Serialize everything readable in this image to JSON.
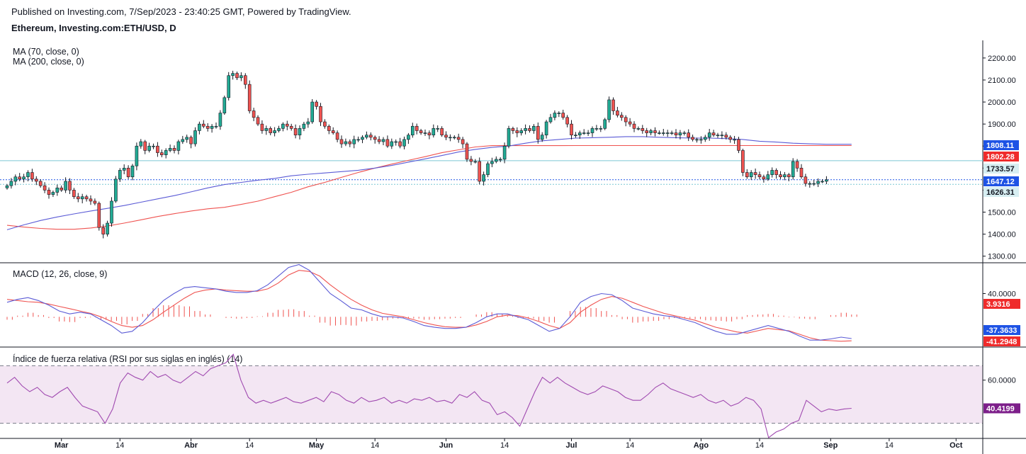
{
  "header": {
    "published": "Published on Investing.com, 7/Sep/2023 - 23:40:25 GMT, Powered by TradingView.",
    "symbol": "Ethereum, Investing.com:ETH/USD, D"
  },
  "colors": {
    "up": "#26a69a",
    "upBody": "#22ab94",
    "down": "#ef5350",
    "ma70": "#5b5bd6",
    "ma200": "#ef5350",
    "macd": "#5b5bd6",
    "signal": "#ef5350",
    "hist": "#ef5350",
    "rsi": "#a04ab0",
    "rsiBand": "#f3e6f3",
    "hline": "#7cc7d4",
    "tagBlue": "#1e53e5",
    "tagRed": "#ef2b2b",
    "tagCyan": "#d7eef2",
    "tagPurple": "#7d1f8a"
  },
  "chart_data": [
    {
      "type": "candlestick",
      "title": "Ethereum, Investing.com:ETH/USD, D",
      "indicators": [
        "MA (70, close, 0)",
        "MA (200, close, 0)"
      ],
      "y_ticks": [
        "2200.00",
        "2100.00",
        "2000.00",
        "1900.00",
        "1800.00",
        "1700.00",
        "1600.00",
        "1500.00",
        "1400.00",
        "1300.00"
      ],
      "y_tick_values": [
        2200,
        2100,
        2000,
        1900,
        1800,
        1700,
        1600,
        1500,
        1400,
        1300
      ],
      "ylim": [
        1270,
        2280
      ],
      "x_labels": [
        "Mar",
        "14",
        "Abr",
        "14",
        "May",
        "14",
        "Jun",
        "14",
        "Jul",
        "14",
        "Ago",
        "14",
        "Sep",
        "14",
        "Oct"
      ],
      "x_label_days": [
        13,
        27,
        44,
        58,
        74,
        88,
        105,
        119,
        135,
        149,
        166,
        180,
        197,
        211,
        227
      ],
      "last_day": 202,
      "price_tags": [
        {
          "label": "1808.11",
          "value": 1808.11,
          "style": "tagBlue"
        },
        {
          "label": "1802.28",
          "value": 1802.28,
          "style": "tagRed"
        },
        {
          "label": "1733.57",
          "value": 1733.57,
          "style": "tagCyan"
        },
        {
          "label": "1647.12",
          "value": 1647.12,
          "style": "tagBlue"
        },
        {
          "label": "1626.31",
          "value": 1626.31,
          "style": "tagCyan"
        }
      ],
      "hlines": [
        1733.57,
        1647.12,
        1626.31
      ],
      "close": [
        1620,
        1640,
        1660,
        1650,
        1660,
        1680,
        1650,
        1640,
        1620,
        1600,
        1580,
        1590,
        1610,
        1600,
        1640,
        1600,
        1570,
        1560,
        1570,
        1560,
        1550,
        1540,
        1430,
        1400,
        1450,
        1550,
        1650,
        1690,
        1700,
        1660,
        1710,
        1800,
        1820,
        1780,
        1800,
        1800,
        1770,
        1760,
        1780,
        1790,
        1780,
        1820,
        1830,
        1840,
        1810,
        1870,
        1900,
        1890,
        1880,
        1890,
        1890,
        1950,
        2020,
        2120,
        2130,
        2110,
        2120,
        2080,
        1960,
        1930,
        1900,
        1870,
        1880,
        1860,
        1870,
        1880,
        1900,
        1890,
        1880,
        1850,
        1880,
        1900,
        1910,
        2000,
        1980,
        1910,
        1890,
        1870,
        1860,
        1830,
        1810,
        1820,
        1810,
        1830,
        1830,
        1840,
        1850,
        1840,
        1830,
        1820,
        1830,
        1800,
        1820,
        1820,
        1800,
        1830,
        1850,
        1890,
        1870,
        1860,
        1860,
        1850,
        1880,
        1880,
        1850,
        1840,
        1840,
        1840,
        1830,
        1810,
        1740,
        1730,
        1730,
        1640,
        1670,
        1720,
        1730,
        1740,
        1740,
        1800,
        1880,
        1870,
        1860,
        1870,
        1880,
        1870,
        1890,
        1830,
        1850,
        1910,
        1930,
        1950,
        1950,
        1930,
        1900,
        1850,
        1850,
        1860,
        1860,
        1860,
        1880,
        1880,
        1880,
        1920,
        2010,
        1960,
        1940,
        1930,
        1910,
        1900,
        1880,
        1880,
        1870,
        1860,
        1870,
        1860,
        1860,
        1860,
        1860,
        1860,
        1850,
        1860,
        1860,
        1840,
        1830,
        1830,
        1830,
        1840,
        1860,
        1850,
        1850,
        1850,
        1840,
        1830,
        1830,
        1780,
        1680,
        1660,
        1680,
        1670,
        1660,
        1650,
        1670,
        1690,
        1670,
        1660,
        1670,
        1660,
        1730,
        1700,
        1660,
        1630,
        1630,
        1630,
        1640,
        1640,
        1647.12
      ],
      "ma70": [
        1420,
        1442,
        1462,
        1478,
        1492,
        1505,
        1517,
        1530,
        1545,
        1560,
        1575,
        1592,
        1610,
        1625,
        1635,
        1645,
        1653,
        1665,
        1672,
        1678,
        1684,
        1690,
        1700,
        1712,
        1727,
        1742,
        1757,
        1773,
        1785,
        1794,
        1800,
        1813,
        1824,
        1830,
        1836,
        1838,
        1840,
        1843,
        1843,
        1840,
        1838,
        1836,
        1836,
        1834,
        1830,
        1822,
        1818,
        1813,
        1810,
        1808
      ],
      "ma200": [
        1440,
        1432,
        1426,
        1422,
        1422,
        1428,
        1437,
        1450,
        1465,
        1480,
        1493,
        1505,
        1515,
        1522,
        1535,
        1550,
        1570,
        1590,
        1615,
        1635,
        1658,
        1680,
        1700,
        1718,
        1735,
        1752,
        1770,
        1783,
        1796,
        1802,
        1802,
        1802,
        1802,
        1802,
        1802.28
      ],
      "ma_start_day": 0,
      "ma_step": 4
    },
    {
      "type": "line",
      "title": "MACD (12, 26, close, 9)",
      "y_ticks": [
        "40.0000"
      ],
      "y_tick_values": [
        40
      ],
      "ylim": [
        -52,
        93
      ],
      "value_tags": [
        {
          "label": "3.9316",
          "value": 3.9316,
          "style": "tagRed"
        },
        {
          "label": "-37.3633",
          "value": -37.3633,
          "style": "tagBlue"
        },
        {
          "label": "-41.2948",
          "value": -41.2948,
          "style": "tagRed"
        }
      ],
      "series": [
        {
          "name": "MACD",
          "values": [
            25,
            30,
            33,
            28,
            20,
            10,
            5,
            8,
            5,
            -5,
            -15,
            -28,
            -25,
            -10,
            10,
            28,
            40,
            50,
            52,
            50,
            48,
            44,
            42,
            42,
            45,
            55,
            70,
            85,
            90,
            80,
            60,
            40,
            28,
            15,
            12,
            5,
            0,
            0,
            -2,
            -8,
            -15,
            -18,
            -20,
            -20,
            -18,
            -10,
            0,
            5,
            5,
            0,
            -5,
            -15,
            -25,
            -20,
            0,
            25,
            35,
            40,
            38,
            28,
            15,
            10,
            5,
            2,
            0,
            -5,
            -10,
            -18,
            -25,
            -30,
            -30,
            -25,
            -20,
            -15,
            -20,
            -25,
            -33,
            -40,
            -40,
            -38,
            -35,
            -37.3633
          ]
        },
        {
          "name": "Signal",
          "values": [
            30,
            28,
            26,
            25,
            22,
            18,
            14,
            10,
            6,
            0,
            -8,
            -15,
            -18,
            -15,
            -5,
            8,
            20,
            32,
            42,
            46,
            48,
            46,
            45,
            44,
            44,
            48,
            58,
            72,
            80,
            78,
            70,
            55,
            42,
            30,
            20,
            12,
            6,
            3,
            0,
            -5,
            -10,
            -14,
            -17,
            -18,
            -18,
            -14,
            -8,
            0,
            3,
            2,
            -2,
            -8,
            -15,
            -20,
            -10,
            8,
            20,
            30,
            35,
            32,
            25,
            18,
            12,
            6,
            2,
            -2,
            -6,
            -12,
            -18,
            -22,
            -26,
            -28,
            -24,
            -20,
            -22,
            -24,
            -30,
            -36,
            -40,
            -41,
            -42,
            -41.2948
          ]
        },
        {
          "name": "Histogram",
          "values": [
            -5,
            2,
            7,
            3,
            -2,
            -8,
            -9,
            -2,
            -1,
            -5,
            -7,
            -13,
            -7,
            5,
            15,
            20,
            20,
            18,
            10,
            4,
            0,
            -2,
            -3,
            -2,
            1,
            7,
            12,
            13,
            10,
            2,
            -10,
            -15,
            -14,
            -15,
            -8,
            -7,
            -6,
            -3,
            -2,
            -3,
            -5,
            -4,
            -3,
            -2,
            0,
            4,
            8,
            5,
            2,
            -2,
            -3,
            -7,
            -10,
            0,
            10,
            17,
            15,
            10,
            3,
            -4,
            -10,
            -8,
            -7,
            -4,
            -2,
            -3,
            -4,
            -6,
            -7,
            -8,
            -4,
            3,
            4,
            5,
            2,
            -1,
            -3,
            -4,
            0,
            3,
            7,
            3.9316
          ]
        }
      ]
    },
    {
      "type": "line",
      "title": "Índice de fuerza relativa (RSI por sus siglas en inglés) (14)",
      "y_ticks": [
        "60.0000"
      ],
      "y_tick_values": [
        60
      ],
      "ylim": [
        20,
        83
      ],
      "band": [
        30,
        70
      ],
      "value_tags": [
        {
          "label": "40.4199",
          "value": 40.4199,
          "style": "tagPurple"
        }
      ],
      "series": [
        {
          "name": "RSI",
          "values": [
            58,
            62,
            56,
            52,
            55,
            50,
            48,
            52,
            55,
            48,
            42,
            40,
            38,
            30,
            40,
            58,
            65,
            62,
            60,
            66,
            62,
            64,
            60,
            58,
            62,
            66,
            63,
            68,
            70,
            72,
            78,
            60,
            48,
            44,
            46,
            44,
            46,
            48,
            45,
            44,
            46,
            48,
            45,
            52,
            50,
            46,
            44,
            48,
            45,
            46,
            48,
            44,
            46,
            44,
            47,
            46,
            48,
            45,
            46,
            44,
            50,
            48,
            52,
            46,
            44,
            36,
            38,
            34,
            28,
            40,
            52,
            62,
            58,
            62,
            58,
            55,
            52,
            50,
            52,
            56,
            54,
            52,
            48,
            46,
            46,
            50,
            55,
            58,
            54,
            52,
            50,
            48,
            50,
            46,
            44,
            46,
            42,
            44,
            48,
            46,
            40,
            20,
            24,
            26,
            30,
            32,
            46,
            42,
            38,
            40,
            39,
            40,
            40.4199
          ]
        }
      ]
    }
  ]
}
